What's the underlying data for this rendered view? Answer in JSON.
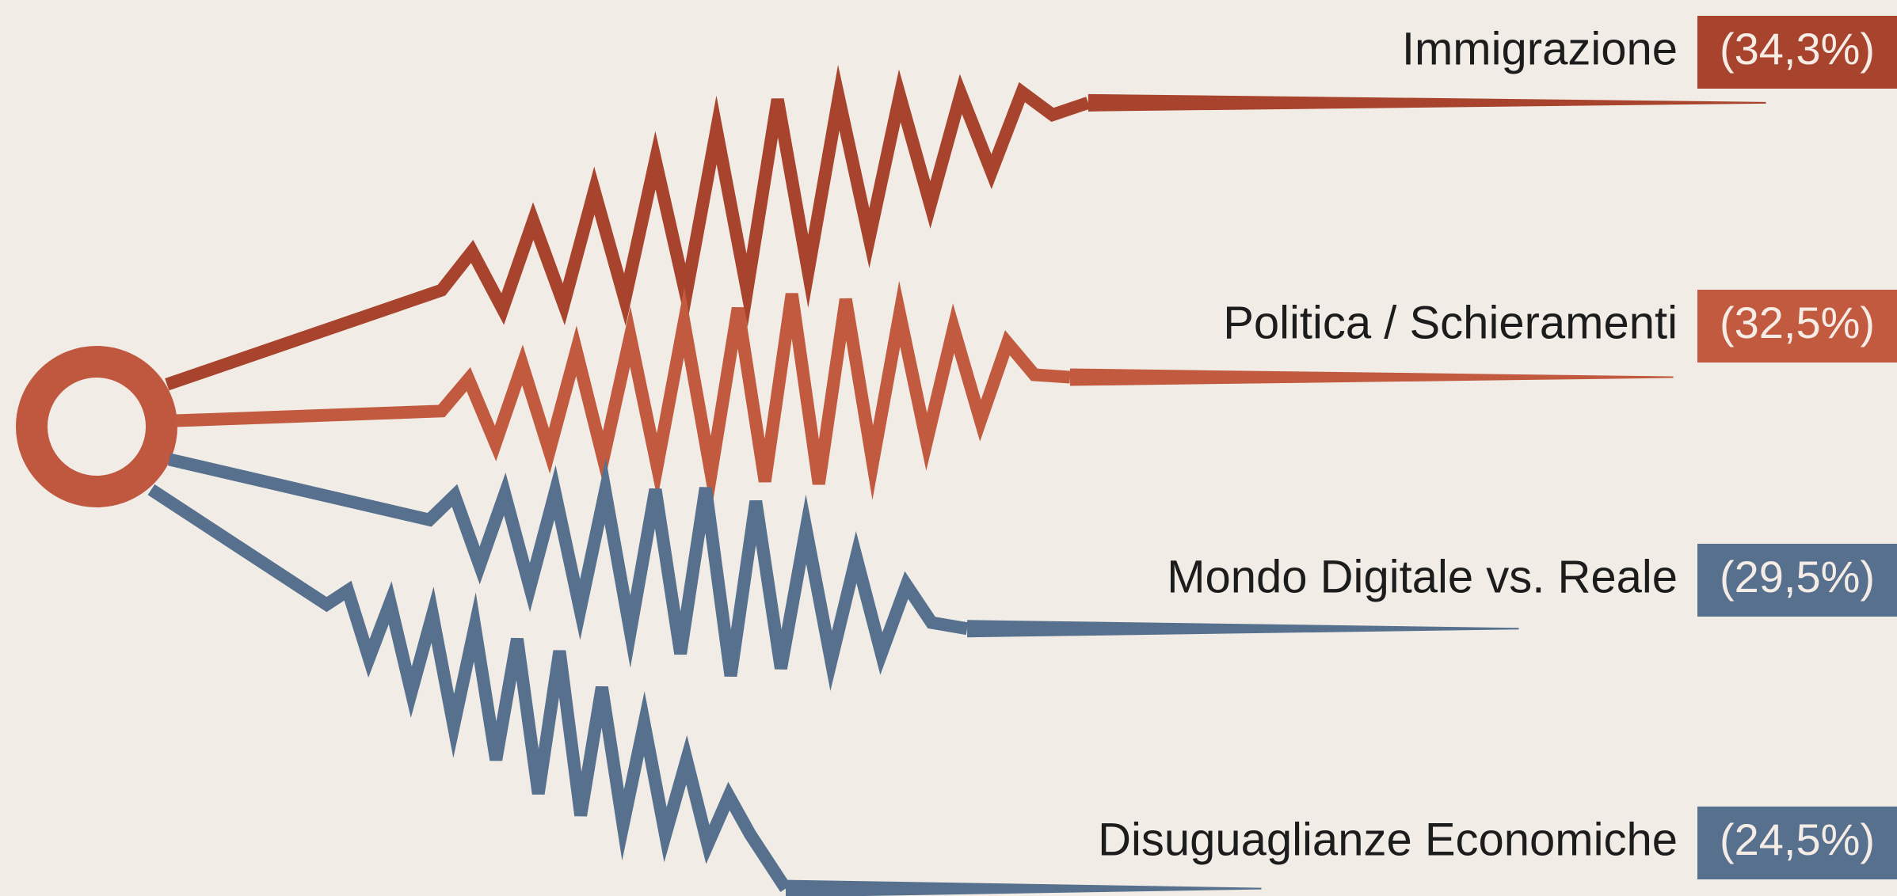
{
  "chart_data": {
    "type": "zigzag",
    "categories": [
      "Immigrazione",
      "Politica / Schieramenti",
      "Mondo Digitale vs. Reale",
      "Disuguaglianze Economiche"
    ],
    "values": [
      34.3,
      32.5,
      29.5,
      24.5
    ],
    "value_labels": [
      "(34,3%)",
      "(32,5%)",
      "(29,5%)",
      "(24,5%)"
    ],
    "colors": [
      "#a8432d",
      "#c25a40",
      "#56708d",
      "#56708d"
    ]
  }
}
